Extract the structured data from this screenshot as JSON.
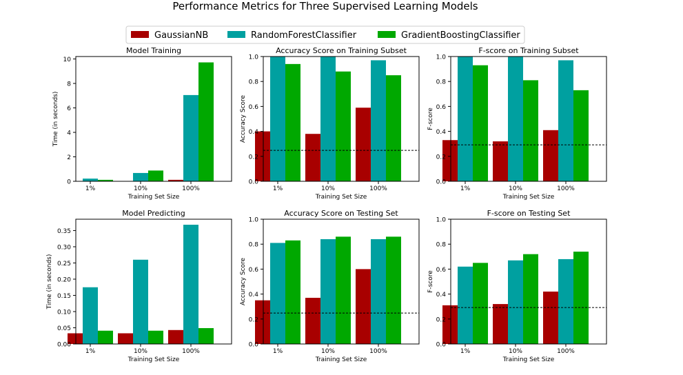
{
  "figure": {
    "title": "Performance Metrics for Three Supervised Learning Models"
  },
  "legend": {
    "placement": "top-center",
    "entries": [
      {
        "name": "GaussianNB",
        "color": "#a80000"
      },
      {
        "name": "RandomForestClassifier",
        "color": "#00a0a0"
      },
      {
        "name": "GradientBoostingClassifier",
        "color": "#00a800"
      }
    ]
  },
  "chart_data": [
    {
      "type": "bar",
      "title": "Model Training",
      "xlabel": "Training Set Size",
      "ylabel": "Time (in seconds)",
      "categories": [
        "1%",
        "10%",
        "100%"
      ],
      "ylim": [
        0,
        10.2
      ],
      "yticks": [
        "0",
        "2",
        "4",
        "6",
        "8",
        "10"
      ],
      "ytick_values": [
        0,
        2,
        4,
        6,
        8,
        10
      ],
      "series": [
        {
          "name": "GaussianNB",
          "values": [
            0.0,
            0.0,
            0.12
          ]
        },
        {
          "name": "RandomForestClassifier",
          "values": [
            0.22,
            0.68,
            7.05
          ]
        },
        {
          "name": "GradientBoostingClassifier",
          "values": [
            0.12,
            0.88,
            9.72
          ]
        }
      ],
      "hline": null
    },
    {
      "type": "bar",
      "title": "Accuracy Score on Training Subset",
      "xlabel": "Training Set Size",
      "ylabel": "Accuracy Score",
      "categories": [
        "1%",
        "10%",
        "100%"
      ],
      "ylim": [
        0,
        1.0
      ],
      "yticks": [
        "0.0",
        "0.2",
        "0.4",
        "0.6",
        "0.8",
        "1.0"
      ],
      "ytick_values": [
        0,
        0.2,
        0.4,
        0.6,
        0.8,
        1.0
      ],
      "series": [
        {
          "name": "GaussianNB",
          "values": [
            0.4,
            0.38,
            0.59
          ]
        },
        {
          "name": "RandomForestClassifier",
          "values": [
            1.0,
            1.0,
            0.97
          ]
        },
        {
          "name": "GradientBoostingClassifier",
          "values": [
            0.94,
            0.88,
            0.85
          ]
        }
      ],
      "hline": 0.248
    },
    {
      "type": "bar",
      "title": "F-score on Training Subset",
      "xlabel": "Training Set Size",
      "ylabel": "F-score",
      "categories": [
        "1%",
        "10%",
        "100%"
      ],
      "ylim": [
        0,
        1.0
      ],
      "yticks": [
        "0.0",
        "0.2",
        "0.4",
        "0.6",
        "0.8",
        "1.0"
      ],
      "ytick_values": [
        0,
        0.2,
        0.4,
        0.6,
        0.8,
        1.0
      ],
      "series": [
        {
          "name": "GaussianNB",
          "values": [
            0.33,
            0.32,
            0.41
          ]
        },
        {
          "name": "RandomForestClassifier",
          "values": [
            1.0,
            1.0,
            0.97
          ]
        },
        {
          "name": "GradientBoostingClassifier",
          "values": [
            0.93,
            0.81,
            0.73
          ]
        }
      ],
      "hline": 0.292
    },
    {
      "type": "bar",
      "title": "Model Predicting",
      "xlabel": "Training Set Size",
      "ylabel": "Time (in seconds)",
      "categories": [
        "1%",
        "10%",
        "100%"
      ],
      "ylim": [
        0,
        0.385
      ],
      "yticks": [
        "0.00",
        "0.05",
        "0.10",
        "0.15",
        "0.20",
        "0.25",
        "0.30",
        "0.35"
      ],
      "ytick_values": [
        0,
        0.05,
        0.1,
        0.15,
        0.2,
        0.25,
        0.3,
        0.35
      ],
      "series": [
        {
          "name": "GaussianNB",
          "values": [
            0.033,
            0.033,
            0.043
          ]
        },
        {
          "name": "RandomForestClassifier",
          "values": [
            0.175,
            0.26,
            0.368
          ]
        },
        {
          "name": "GradientBoostingClassifier",
          "values": [
            0.041,
            0.041,
            0.049
          ]
        }
      ],
      "hline": null
    },
    {
      "type": "bar",
      "title": "Accuracy Score on Testing Set",
      "xlabel": "Training Set Size",
      "ylabel": "Accuracy Score",
      "categories": [
        "1%",
        "10%",
        "100%"
      ],
      "ylim": [
        0,
        1.0
      ],
      "yticks": [
        "0.0",
        "0.2",
        "0.4",
        "0.6",
        "0.8",
        "1.0"
      ],
      "ytick_values": [
        0,
        0.2,
        0.4,
        0.6,
        0.8,
        1.0
      ],
      "series": [
        {
          "name": "GaussianNB",
          "values": [
            0.35,
            0.37,
            0.6
          ]
        },
        {
          "name": "RandomForestClassifier",
          "values": [
            0.81,
            0.84,
            0.84
          ]
        },
        {
          "name": "GradientBoostingClassifier",
          "values": [
            0.83,
            0.86,
            0.86
          ]
        }
      ],
      "hline": 0.248
    },
    {
      "type": "bar",
      "title": "F-score on Testing Set",
      "xlabel": "Training Set Size",
      "ylabel": "F-score",
      "categories": [
        "1%",
        "10%",
        "100%"
      ],
      "ylim": [
        0,
        1.0
      ],
      "yticks": [
        "0.0",
        "0.2",
        "0.4",
        "0.6",
        "0.8",
        "1.0"
      ],
      "ytick_values": [
        0,
        0.2,
        0.4,
        0.6,
        0.8,
        1.0
      ],
      "series": [
        {
          "name": "GaussianNB",
          "values": [
            0.31,
            0.32,
            0.42
          ]
        },
        {
          "name": "RandomForestClassifier",
          "values": [
            0.62,
            0.67,
            0.68
          ]
        },
        {
          "name": "GradientBoostingClassifier",
          "values": [
            0.65,
            0.72,
            0.74
          ]
        }
      ],
      "hline": 0.292
    }
  ]
}
